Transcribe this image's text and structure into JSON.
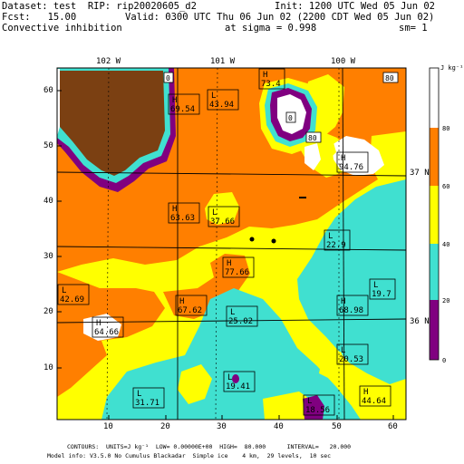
{
  "header": {
    "dataset": "Dataset: test  RIP: rip20020605_d2",
    "init": "Init: 1200 UTC Wed 05 Jun 02",
    "fcst": "Fcst:   15.00",
    "valid": "Valid: 0300 UTC Thu 06 Jun 02 (2200 CDT Wed 05 Jun 02)",
    "field": "Convective inhibition",
    "sigma": "at sigma = 0.998",
    "sm": "sm= 1"
  },
  "axes": {
    "x_ticks": [
      "10",
      "20",
      "30",
      "40",
      "50",
      "60"
    ],
    "y_ticks": [
      "10",
      "20",
      "30",
      "40",
      "50",
      "60"
    ],
    "longitudes": [
      "102 W",
      "101 W",
      "100 W"
    ],
    "latitudes": [
      "37 N",
      "36 N"
    ]
  },
  "colorbar": {
    "units": "J kg⁻¹",
    "levels": [
      "80",
      "60",
      "40",
      "20",
      "0"
    ],
    "colors": [
      "#ffffff",
      "#ff7f00",
      "#ffff00",
      "#40e0d0",
      "#800080"
    ]
  },
  "colors": {
    "orange": "#ff7f00",
    "yellow": "#ffff00",
    "cyan": "#40e0d0",
    "brown": "#7b4012",
    "purple": "#800080",
    "white": "#ffffff"
  },
  "markers": [
    {
      "type": "H",
      "value": "69.54"
    },
    {
      "type": "L",
      "value": "43.94"
    },
    {
      "type": "H",
      "value": "73.4"
    },
    {
      "type": "H",
      "value": "94.76"
    },
    {
      "type": "H",
      "value": "63.63"
    },
    {
      "type": "L",
      "value": "37.66"
    },
    {
      "type": "L",
      "value": "22.9"
    },
    {
      "type": "H",
      "value": "77.66"
    },
    {
      "type": "L",
      "value": "19.7"
    },
    {
      "type": "L",
      "value": "42.69"
    },
    {
      "type": "H",
      "value": "67.62"
    },
    {
      "type": "L",
      "value": "25.02"
    },
    {
      "type": "H",
      "value": "68.98"
    },
    {
      "type": "H",
      "value": "64.66"
    },
    {
      "type": "L",
      "value": "20.53"
    },
    {
      "type": "L",
      "value": "31.71"
    },
    {
      "type": "L",
      "value": "19.41"
    },
    {
      "type": "L",
      "value": "18.56"
    },
    {
      "type": "H",
      "value": "44.64"
    }
  ],
  "small_labels": [
    "0",
    "80",
    "0",
    "80"
  ],
  "footer": {
    "contours": "CONTOURS:  UNITS=J kg⁻¹  LOW= 0.00000E+00  HIGH=  80.000      INTERVAL=   20.000",
    "model": "Model info: V3.5.0 No Cumulus Blackadar  Simple ice    4 km,  29 levels,  10 sec"
  }
}
